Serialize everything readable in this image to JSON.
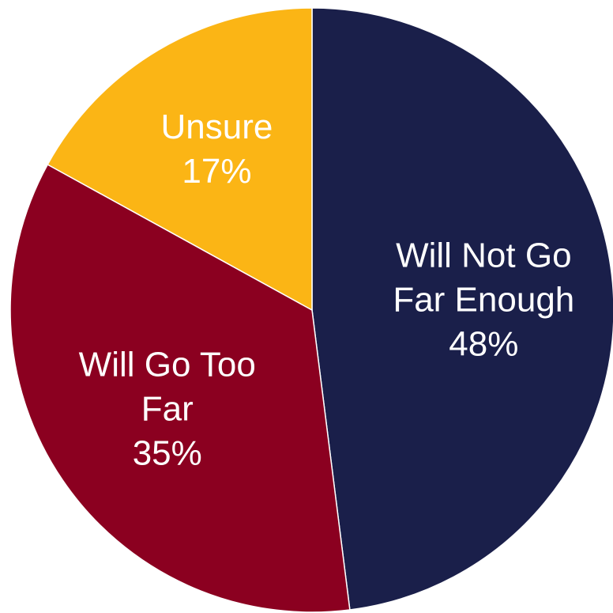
{
  "chart_data": {
    "type": "pie",
    "title": "",
    "start_angle_deg": 0,
    "direction": "clockwise",
    "slices": [
      {
        "label_lines": [
          "Will Not Go",
          "Far Enough"
        ],
        "percent_label": "48%",
        "value": 48,
        "color": "#1a1f4a"
      },
      {
        "label_lines": [
          "Will Go Too",
          "Far"
        ],
        "percent_label": "35%",
        "value": 35,
        "color": "#8b0020"
      },
      {
        "label_lines": [
          "Unsure"
        ],
        "percent_label": "17%",
        "value": 17,
        "color": "#fbb515"
      }
    ],
    "legend": "none",
    "label_position": "inside",
    "label_color": "#ffffff",
    "edge_color": "#ffffff"
  }
}
